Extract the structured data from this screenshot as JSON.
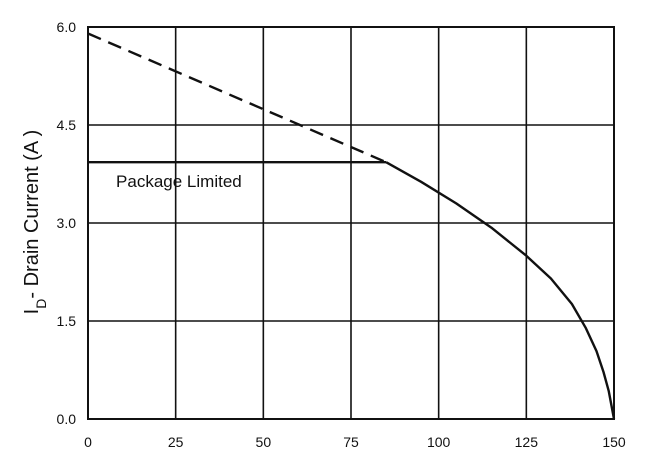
{
  "chart_data": {
    "type": "line",
    "xlabel": "",
    "ylabel": {
      "main": "I",
      "sub": "D",
      "rest": "- Drain Current (A )"
    },
    "xlim": [
      0,
      150
    ],
    "ylim": [
      0,
      6.0
    ],
    "xticks": [
      "0",
      "25",
      "50",
      "75",
      "100",
      "125",
      "150"
    ],
    "yticks": [
      "0.0",
      "1.5",
      "3.0",
      "4.5",
      "6.0"
    ],
    "grid": true,
    "series": [
      {
        "style": "solid",
        "points": [
          [
            85,
            3.93
          ],
          [
            95,
            3.63
          ],
          [
            105,
            3.3
          ],
          [
            115,
            2.93
          ],
          [
            125,
            2.5
          ],
          [
            132,
            2.15
          ],
          [
            138,
            1.76
          ],
          [
            142,
            1.39
          ],
          [
            145,
            1.04
          ],
          [
            147,
            0.72
          ],
          [
            148.5,
            0.43
          ],
          [
            150,
            0
          ]
        ]
      },
      {
        "style": "dashed",
        "points": [
          [
            0,
            5.9
          ],
          [
            85,
            3.93
          ]
        ]
      },
      {
        "style": "solid",
        "points": [
          [
            0,
            3.93
          ],
          [
            85,
            3.93
          ]
        ]
      }
    ],
    "annotations": [
      {
        "text": "Package Limited",
        "x": 8,
        "y": 3.55
      }
    ]
  }
}
